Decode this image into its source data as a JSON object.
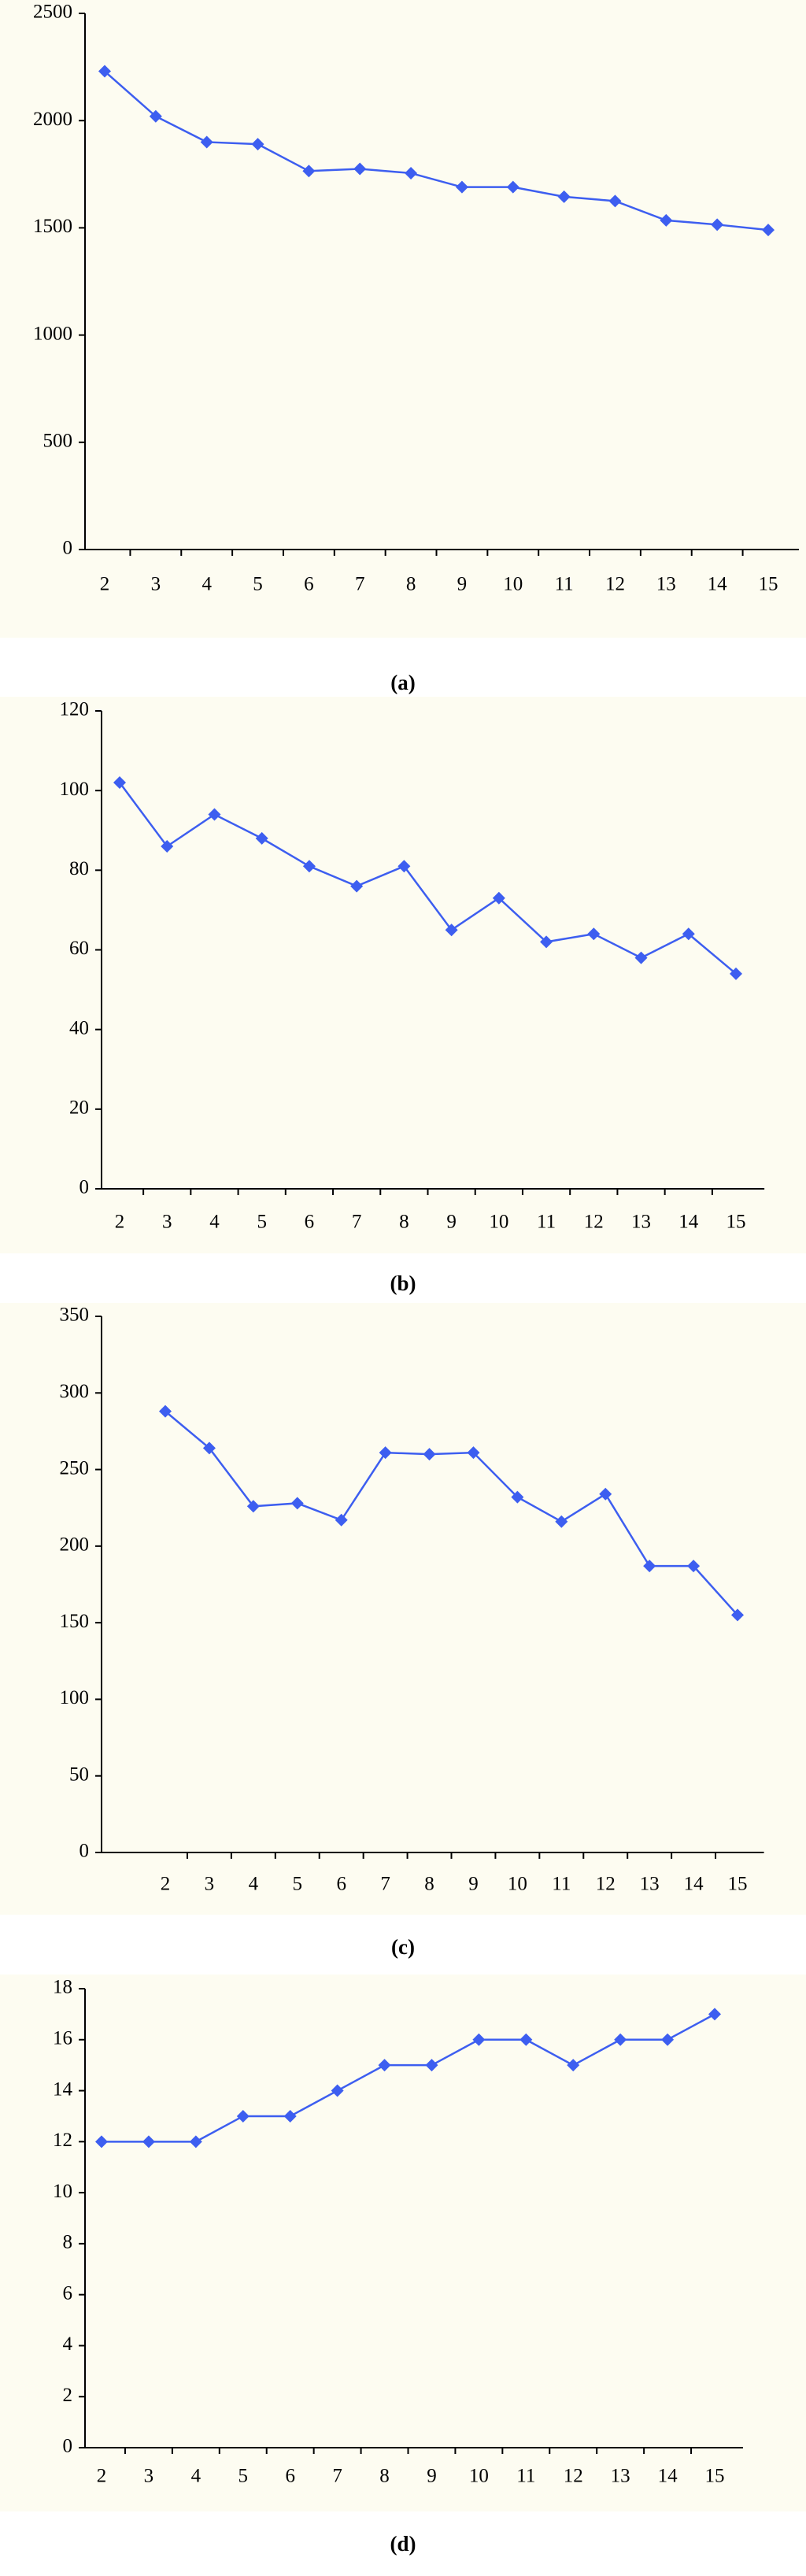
{
  "chart_data": [
    {
      "type": "line",
      "caption": "(a)",
      "categories": [
        "2",
        "3",
        "4",
        "5",
        "6",
        "7",
        "8",
        "9",
        "10",
        "11",
        "12",
        "13",
        "14",
        "15"
      ],
      "series": [
        {
          "color": "#3d5ef0",
          "values": [
            2230,
            2020,
            1900,
            1890,
            1765,
            1775,
            1755,
            1690,
            1690,
            1645,
            1625,
            1535,
            1515,
            1490
          ]
        }
      ],
      "ylim": [
        0,
        2500
      ],
      "yticks": [
        0,
        500,
        1000,
        1500,
        2000,
        2500
      ]
    },
    {
      "type": "line",
      "caption": "(b)",
      "categories": [
        "2",
        "3",
        "4",
        "5",
        "6",
        "7",
        "8",
        "9",
        "10",
        "11",
        "12",
        "13",
        "14",
        "15"
      ],
      "series": [
        {
          "color": "#3d5ef0",
          "values": [
            102,
            86,
            94,
            88,
            81,
            76,
            81,
            65,
            73,
            62,
            64,
            58,
            64,
            54
          ]
        }
      ],
      "ylim": [
        0,
        120
      ],
      "yticks": [
        0,
        20,
        40,
        60,
        80,
        100,
        120
      ]
    },
    {
      "type": "line",
      "caption": "(c)",
      "categories": [
        "2",
        "3",
        "4",
        "5",
        "6",
        "7",
        "8",
        "9",
        "10",
        "11",
        "12",
        "13",
        "14",
        "15"
      ],
      "series": [
        {
          "color": "#3d5ef0",
          "values": [
            288,
            264,
            226,
            228,
            217,
            261,
            260,
            261,
            232,
            216,
            234,
            187,
            187,
            155
          ]
        }
      ],
      "ylim": [
        0,
        350
      ],
      "yticks": [
        0,
        50,
        100,
        150,
        200,
        250,
        300,
        350
      ]
    },
    {
      "type": "line",
      "caption": "(d)",
      "categories": [
        "2",
        "3",
        "4",
        "5",
        "6",
        "7",
        "8",
        "9",
        "10",
        "11",
        "12",
        "13",
        "14",
        "15"
      ],
      "series": [
        {
          "color": "#3d5ef0",
          "values": [
            12,
            12,
            12,
            13,
            13,
            14,
            15,
            15,
            16,
            16,
            15,
            16,
            16,
            17
          ]
        }
      ],
      "ylim": [
        0,
        18
      ],
      "yticks": [
        0,
        2,
        4,
        6,
        8,
        10,
        12,
        14,
        16,
        18
      ]
    }
  ]
}
